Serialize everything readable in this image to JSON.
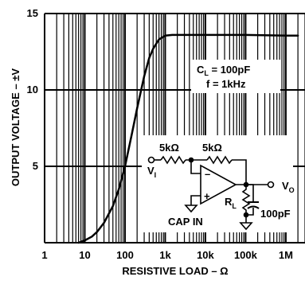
{
  "chart_data": {
    "type": "line",
    "xlabel": "RESISTIVE LOAD – Ω",
    "ylabel": "OUTPUT VOLTAGE – ±V",
    "x_scale": "log",
    "xlim": [
      1,
      3000000
    ],
    "ylim": [
      0,
      15
    ],
    "x_ticks": [
      {
        "value": 1,
        "label": "1"
      },
      {
        "value": 10,
        "label": "10"
      },
      {
        "value": 100,
        "label": "100"
      },
      {
        "value": 1000,
        "label": "1k"
      },
      {
        "value": 10000,
        "label": "10k"
      },
      {
        "value": 100000,
        "label": "100k"
      },
      {
        "value": 1000000,
        "label": "1M"
      }
    ],
    "y_ticks": [
      {
        "value": 0,
        "label": ""
      },
      {
        "value": 5,
        "label": "5"
      },
      {
        "value": 10,
        "label": "10"
      },
      {
        "value": 15,
        "label": "15"
      }
    ],
    "grid": true,
    "series": [
      {
        "x": [
          7,
          10,
          15,
          20,
          30,
          50,
          70,
          100,
          150,
          200,
          300,
          400,
          500,
          700,
          1000,
          1500,
          2000,
          5000,
          10000,
          100000,
          1000000,
          2000000
        ],
        "y": [
          0,
          0.15,
          0.4,
          0.7,
          1.3,
          2.4,
          3.5,
          5.0,
          7.2,
          8.8,
          10.9,
          12.1,
          12.7,
          13.3,
          13.55,
          13.6,
          13.6,
          13.6,
          13.6,
          13.6,
          13.55,
          13.55
        ]
      }
    ],
    "annotations": {
      "cl_label": "C",
      "cl_sub": "L",
      "cl_value": " = 100pF",
      "freq": "f = 1kHz"
    },
    "circuit": {
      "r_in": "5kΩ",
      "r_f": "5kΩ",
      "vin": "V",
      "vin_sub": "I",
      "vout": "V",
      "vout_sub": "O",
      "rl": "R",
      "rl_sub": "L",
      "cap_in": "CAP IN",
      "cap": "100pF",
      "opamp_minus": "–",
      "opamp_plus": "+"
    }
  }
}
